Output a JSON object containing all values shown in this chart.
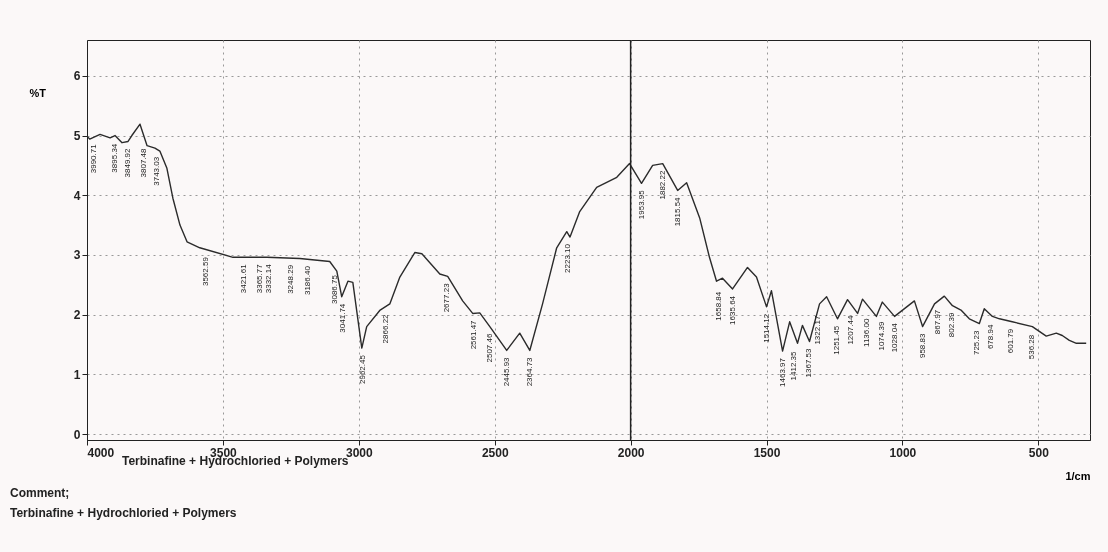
{
  "chart_data": {
    "type": "line",
    "ylabel": "%T",
    "xlabel": "1/cm",
    "xlim": [
      4000,
      310
    ],
    "ylim": [
      -0.1,
      6.6
    ],
    "xticks": [
      4000,
      3500,
      3000,
      2500,
      2000,
      1500,
      1000,
      500
    ],
    "yticks": [
      0,
      1,
      2,
      3,
      4,
      5,
      6
    ],
    "grid": true,
    "line_style": "solid",
    "ref_lines": [
      {
        "axis": "x",
        "value": 2000,
        "color": "#222222",
        "line_style": "solid"
      }
    ],
    "series": [
      {
        "color": "#2b2b2b",
        "x": [
          4000,
          3990,
          3952,
          3915,
          3897,
          3871,
          3849,
          3835,
          3805,
          3779,
          3750,
          3732,
          3706,
          3684,
          3658,
          3632,
          3585,
          3463,
          3338,
          3217,
          3107,
          3081,
          3063,
          3040,
          3022,
          2989,
          2971,
          2923,
          2886,
          2849,
          2794,
          2768,
          2702,
          2673,
          2618,
          2581,
          2555,
          2518,
          2456,
          2408,
          2371,
          2324,
          2272,
          2235,
          2223,
          2188,
          2125,
          2051,
          2004,
          1960,
          1919,
          1882,
          1827,
          1794,
          1746,
          1710,
          1684,
          1662,
          1625,
          1570,
          1537,
          1500,
          1482,
          1441,
          1415,
          1386,
          1368,
          1342,
          1305,
          1279,
          1239,
          1202,
          1165,
          1147,
          1096,
          1074,
          1029,
          956,
          926,
          882,
          846,
          816,
          783,
          754,
          717,
          699,
          669,
          643,
          596,
          522,
          471,
          434,
          412,
          386,
          360,
          324
        ],
        "values": [
          4.99,
          4.94,
          5.02,
          4.96,
          5.0,
          4.88,
          4.9,
          5.0,
          5.19,
          4.83,
          4.79,
          4.74,
          4.45,
          3.95,
          3.5,
          3.22,
          3.12,
          2.96,
          2.96,
          2.94,
          2.89,
          2.73,
          2.3,
          2.56,
          2.54,
          1.44,
          1.8,
          2.07,
          2.18,
          2.63,
          3.04,
          3.02,
          2.68,
          2.64,
          2.23,
          2.02,
          2.03,
          1.8,
          1.4,
          1.69,
          1.4,
          2.18,
          3.12,
          3.39,
          3.3,
          3.72,
          4.13,
          4.3,
          4.53,
          4.2,
          4.5,
          4.53,
          4.08,
          4.21,
          3.62,
          2.96,
          2.56,
          2.61,
          2.43,
          2.79,
          2.63,
          2.13,
          2.4,
          1.39,
          1.88,
          1.52,
          1.82,
          1.55,
          2.18,
          2.3,
          1.93,
          2.25,
          2.02,
          2.26,
          1.97,
          2.21,
          1.97,
          2.23,
          1.8,
          2.18,
          2.31,
          2.15,
          2.07,
          1.93,
          1.85,
          2.1,
          1.97,
          1.93,
          1.88,
          1.8,
          1.64,
          1.69,
          1.65,
          1.57,
          1.52,
          1.52
        ]
      }
    ],
    "annotations": [
      {
        "text": "3990.71",
        "x": 3975,
        "y": 4.97
      },
      {
        "text": "3895.34",
        "x": 3897,
        "y": 4.98
      },
      {
        "text": "3849.92",
        "x": 3849,
        "y": 4.9
      },
      {
        "text": "3807.48",
        "x": 3790,
        "y": 4.9
      },
      {
        "text": "3743.03",
        "x": 3743,
        "y": 4.76
      },
      {
        "text": "3562.59",
        "x": 3562,
        "y": 3.08
      },
      {
        "text": "3421.61",
        "x": 3421,
        "y": 2.96
      },
      {
        "text": "3365.77",
        "x": 3365,
        "y": 2.96
      },
      {
        "text": "3332.14",
        "x": 3332,
        "y": 2.96
      },
      {
        "text": "3248.29",
        "x": 3248,
        "y": 2.95
      },
      {
        "text": "3186.40",
        "x": 3186,
        "y": 2.93
      },
      {
        "text": "3086.75",
        "x": 3086,
        "y": 2.78
      },
      {
        "text": "3041.74",
        "x": 3060,
        "y": 2.3
      },
      {
        "text": "2962.45",
        "x": 2985,
        "y": 1.44
      },
      {
        "text": "2866.22",
        "x": 2900,
        "y": 2.12
      },
      {
        "text": "2677.23",
        "x": 2677,
        "y": 2.64
      },
      {
        "text": "2561.47",
        "x": 2575,
        "y": 2.02
      },
      {
        "text": "2507.46",
        "x": 2518,
        "y": 1.8
      },
      {
        "text": "2445.93",
        "x": 2456,
        "y": 1.4
      },
      {
        "text": "2364.73",
        "x": 2371,
        "y": 1.4
      },
      {
        "text": "2223.10",
        "x": 2230,
        "y": 3.3
      },
      {
        "text": "1953.95",
        "x": 1960,
        "y": 4.2
      },
      {
        "text": "1882.22",
        "x": 1882,
        "y": 4.53
      },
      {
        "text": "1815.54",
        "x": 1827,
        "y": 4.08
      },
      {
        "text": "1658.84",
        "x": 1675,
        "y": 2.5
      },
      {
        "text": "1635.64",
        "x": 1625,
        "y": 2.43
      },
      {
        "text": "1514.12",
        "x": 1500,
        "y": 2.13
      },
      {
        "text": "1463.97",
        "x": 1441,
        "y": 1.39
      },
      {
        "text": "1412.35",
        "x": 1400,
        "y": 1.5
      },
      {
        "text": "1367.53",
        "x": 1342,
        "y": 1.55
      },
      {
        "text": "1322.17",
        "x": 1310,
        "y": 2.1
      },
      {
        "text": "1251.45",
        "x": 1239,
        "y": 1.93
      },
      {
        "text": "1207.44",
        "x": 1190,
        "y": 2.1
      },
      {
        "text": "1136.00",
        "x": 1130,
        "y": 2.05
      },
      {
        "text": "1074.39",
        "x": 1074,
        "y": 2.0
      },
      {
        "text": "1028.04",
        "x": 1029,
        "y": 1.97
      },
      {
        "text": "958.83",
        "x": 926,
        "y": 1.8
      },
      {
        "text": "867.97",
        "x": 870,
        "y": 2.2
      },
      {
        "text": "802.39",
        "x": 816,
        "y": 2.15
      },
      {
        "text": "725.23",
        "x": 725,
        "y": 1.85
      },
      {
        "text": "678.94",
        "x": 675,
        "y": 1.95
      },
      {
        "text": "601.79",
        "x": 600,
        "y": 1.88
      },
      {
        "text": "536.28",
        "x": 525,
        "y": 1.78
      },
      "Terbinafine + Hydrochloried + Polymers",
      "Comment;",
      "Terbinafine + Hydrochloried + Polymers"
    ]
  }
}
